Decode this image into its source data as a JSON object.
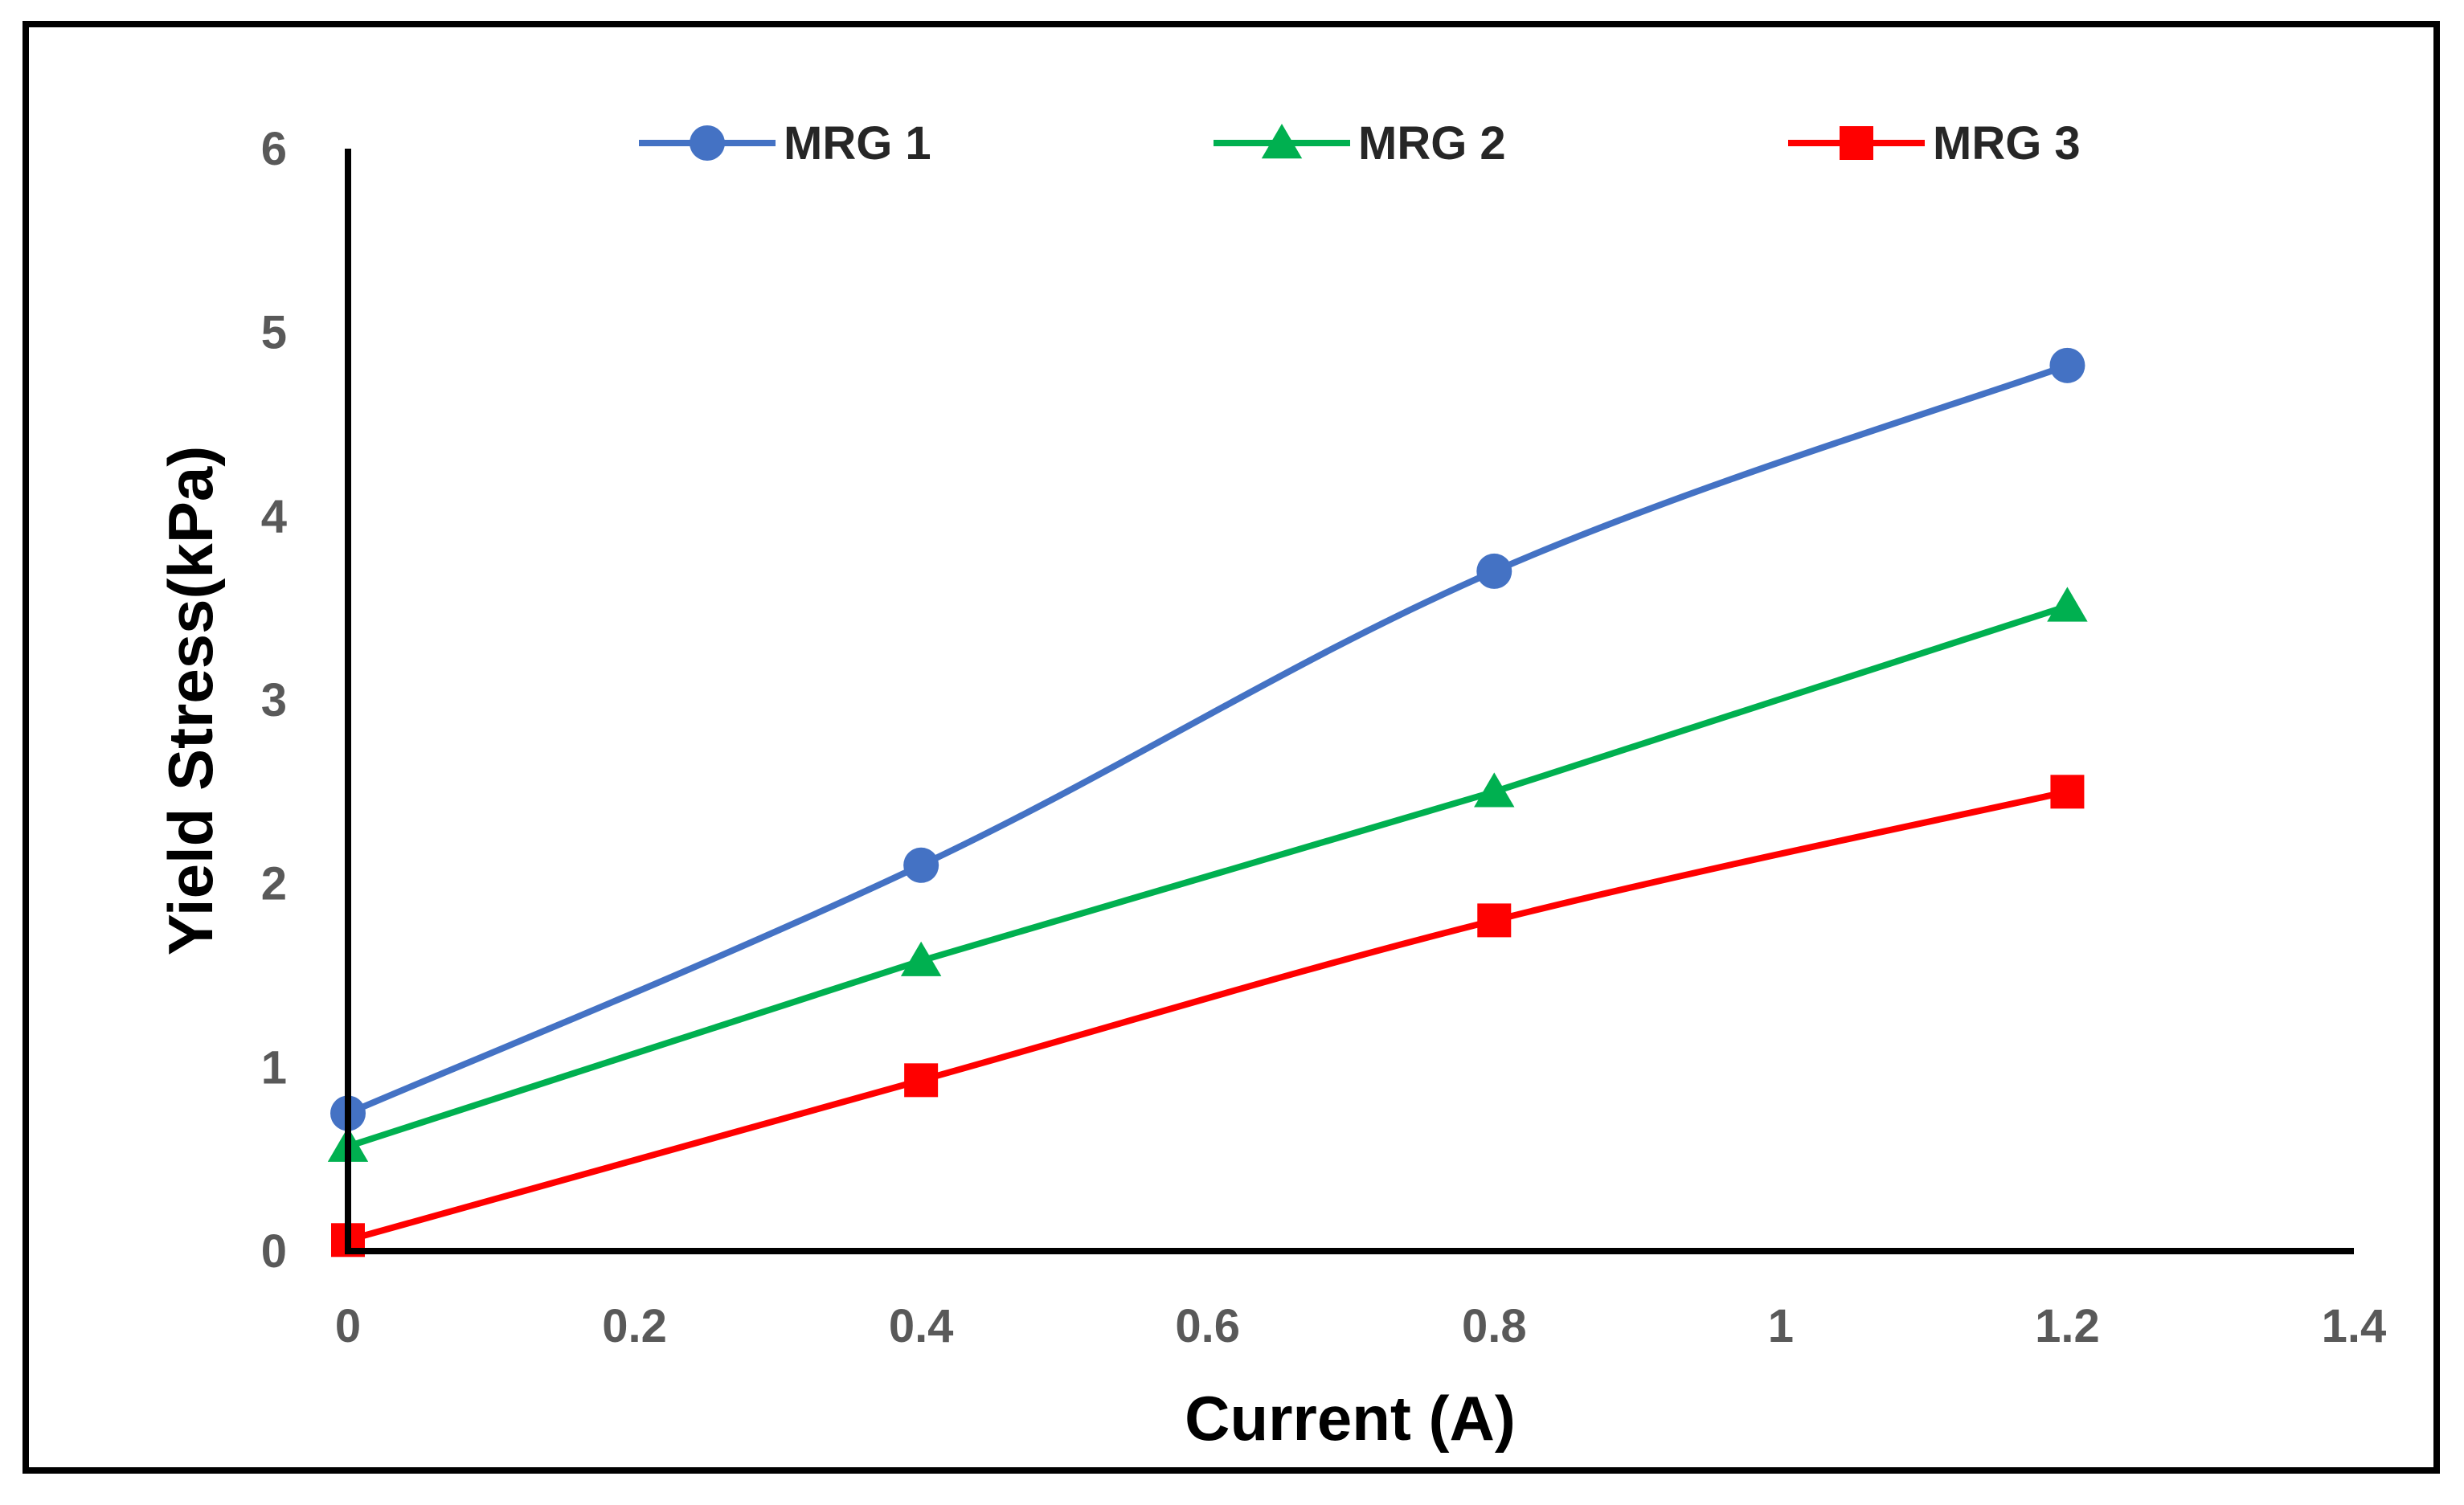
{
  "chart_data": {
    "type": "line",
    "title": "",
    "xlabel": "Current (A)",
    "ylabel": "Yield Stress(kPa)",
    "xlim": [
      0,
      1.4
    ],
    "ylim": [
      0,
      6
    ],
    "x_ticks": [
      "0",
      "0.2",
      "0.4",
      "0.6",
      "0.8",
      "1",
      "1.2",
      "1.4"
    ],
    "y_ticks": [
      "0",
      "1",
      "2",
      "3",
      "4",
      "5",
      "6"
    ],
    "x_tick_values": [
      0,
      0.2,
      0.4,
      0.6,
      0.8,
      1.0,
      1.2,
      1.4
    ],
    "y_tick_values": [
      0,
      1,
      2,
      3,
      4,
      5,
      6
    ],
    "grid": false,
    "legend_position": "top",
    "series": [
      {
        "name": "MRG 1",
        "color": "#4472C4",
        "marker": "circle",
        "smooth": true,
        "x": [
          0,
          0.4,
          0.8,
          1.2
        ],
        "y": [
          0.75,
          2.1,
          3.7,
          4.82
        ]
      },
      {
        "name": "MRG 2",
        "color": "#00B050",
        "marker": "triangle",
        "smooth": false,
        "x": [
          0,
          0.4,
          0.8,
          1.2
        ],
        "y": [
          0.57,
          1.58,
          2.5,
          3.51
        ]
      },
      {
        "name": "MRG 3",
        "color": "#FF0000",
        "marker": "square",
        "smooth": true,
        "x": [
          0,
          0.4,
          0.8,
          1.2
        ],
        "y": [
          0.06,
          0.93,
          1.8,
          2.5
        ]
      }
    ]
  }
}
